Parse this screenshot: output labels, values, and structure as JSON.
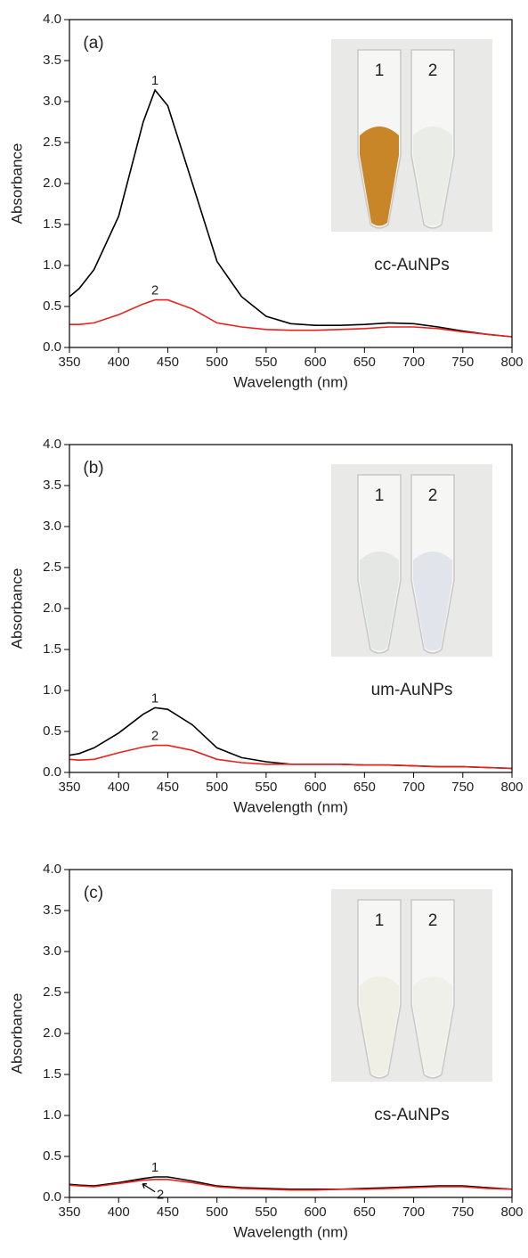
{
  "chart_data": [
    {
      "type": "line",
      "panel": "(a)",
      "x_label": "Wavelength (nm)",
      "y_label": "Absorbance",
      "x": [
        350,
        360,
        375,
        400,
        425,
        437,
        450,
        475,
        500,
        525,
        550,
        575,
        600,
        625,
        650,
        675,
        700,
        725,
        750,
        775,
        800
      ],
      "series": [
        {
          "name": "1",
          "color": "#000000",
          "values": [
            0.62,
            0.72,
            0.95,
            1.6,
            2.75,
            3.14,
            2.95,
            2.0,
            1.05,
            0.62,
            0.38,
            0.29,
            0.27,
            0.27,
            0.28,
            0.3,
            0.29,
            0.25,
            0.2,
            0.16,
            0.13
          ]
        },
        {
          "name": "2",
          "color": "#e8211d",
          "values": [
            0.28,
            0.28,
            0.3,
            0.4,
            0.53,
            0.58,
            0.58,
            0.47,
            0.3,
            0.25,
            0.22,
            0.21,
            0.21,
            0.22,
            0.23,
            0.25,
            0.25,
            0.23,
            0.19,
            0.16,
            0.13
          ]
        }
      ],
      "xlim": [
        350,
        800
      ],
      "ylim": [
        0,
        4
      ],
      "xticks": [
        350,
        400,
        450,
        500,
        550,
        600,
        650,
        700,
        750,
        800
      ],
      "yticks": [
        {
          "value": 0,
          "label": "0.0"
        },
        0.5,
        {
          "value": 1,
          "label": "1.0"
        },
        1.5,
        {
          "value": 2,
          "label": "2.0"
        },
        2.5,
        {
          "value": 3,
          "label": "3.0"
        },
        3.5,
        {
          "value": 4,
          "label": "4.0"
        }
      ],
      "inset": {
        "labels": [
          "1",
          "2"
        ],
        "caption": "cc-AuNPs"
      }
    },
    {
      "type": "line",
      "panel": "(b)",
      "x_label": "Wavelength (nm)",
      "y_label": "Absorbance",
      "x": [
        350,
        360,
        375,
        400,
        425,
        437,
        450,
        475,
        500,
        525,
        550,
        575,
        600,
        625,
        650,
        675,
        700,
        725,
        750,
        775,
        800
      ],
      "series": [
        {
          "name": "1",
          "color": "#000000",
          "values": [
            0.21,
            0.23,
            0.3,
            0.48,
            0.71,
            0.79,
            0.77,
            0.58,
            0.3,
            0.18,
            0.13,
            0.1,
            0.1,
            0.1,
            0.09,
            0.09,
            0.08,
            0.07,
            0.07,
            0.06,
            0.05
          ]
        },
        {
          "name": "2",
          "color": "#e8211d",
          "values": [
            0.16,
            0.15,
            0.16,
            0.24,
            0.31,
            0.33,
            0.33,
            0.27,
            0.16,
            0.12,
            0.1,
            0.1,
            0.1,
            0.1,
            0.09,
            0.09,
            0.08,
            0.07,
            0.07,
            0.06,
            0.05
          ]
        }
      ],
      "xlim": [
        350,
        800
      ],
      "ylim": [
        0,
        4
      ],
      "xticks": [
        350,
        400,
        450,
        500,
        550,
        600,
        650,
        700,
        750,
        800
      ],
      "yticks": [
        {
          "value": 0,
          "label": "0.0"
        },
        0.5,
        {
          "value": 1,
          "label": "1.0"
        },
        1.5,
        {
          "value": 2,
          "label": "2.0"
        },
        2.5,
        {
          "value": 3,
          "label": "3.0"
        },
        3.5,
        {
          "value": 4,
          "label": "4.0"
        }
      ],
      "inset": {
        "labels": [
          "1",
          "2"
        ],
        "caption": "um-AuNPs"
      }
    },
    {
      "type": "line",
      "panel": "(c)",
      "x_label": "Wavelength (nm)",
      "y_label": "Absorbance",
      "x": [
        350,
        360,
        375,
        400,
        425,
        437,
        450,
        475,
        500,
        525,
        550,
        575,
        600,
        625,
        650,
        675,
        700,
        725,
        750,
        775,
        800
      ],
      "series": [
        {
          "name": "1",
          "color": "#000000",
          "values": [
            0.16,
            0.15,
            0.14,
            0.18,
            0.23,
            0.25,
            0.25,
            0.2,
            0.14,
            0.12,
            0.11,
            0.1,
            0.1,
            0.1,
            0.11,
            0.12,
            0.13,
            0.14,
            0.14,
            0.12,
            0.1
          ]
        },
        {
          "name": "2",
          "color": "#e8211d",
          "values": [
            0.15,
            0.14,
            0.13,
            0.17,
            0.21,
            0.22,
            0.22,
            0.18,
            0.13,
            0.11,
            0.1,
            0.09,
            0.09,
            0.1,
            0.1,
            0.11,
            0.12,
            0.13,
            0.13,
            0.11,
            0.1
          ]
        }
      ],
      "xlim": [
        350,
        800
      ],
      "ylim": [
        0,
        4
      ],
      "xticks": [
        350,
        400,
        450,
        500,
        550,
        600,
        650,
        700,
        750,
        800
      ],
      "yticks": [
        {
          "value": 0,
          "label": "0.0"
        },
        0.5,
        {
          "value": 1,
          "label": "1.0"
        },
        1.5,
        {
          "value": 2,
          "label": "2.0"
        },
        2.5,
        {
          "value": 3,
          "label": "3.0"
        },
        3.5,
        {
          "value": 4,
          "label": "4.0"
        }
      ],
      "inset": {
        "labels": [
          "1",
          "2"
        ],
        "caption": "cs-AuNPs"
      }
    }
  ]
}
